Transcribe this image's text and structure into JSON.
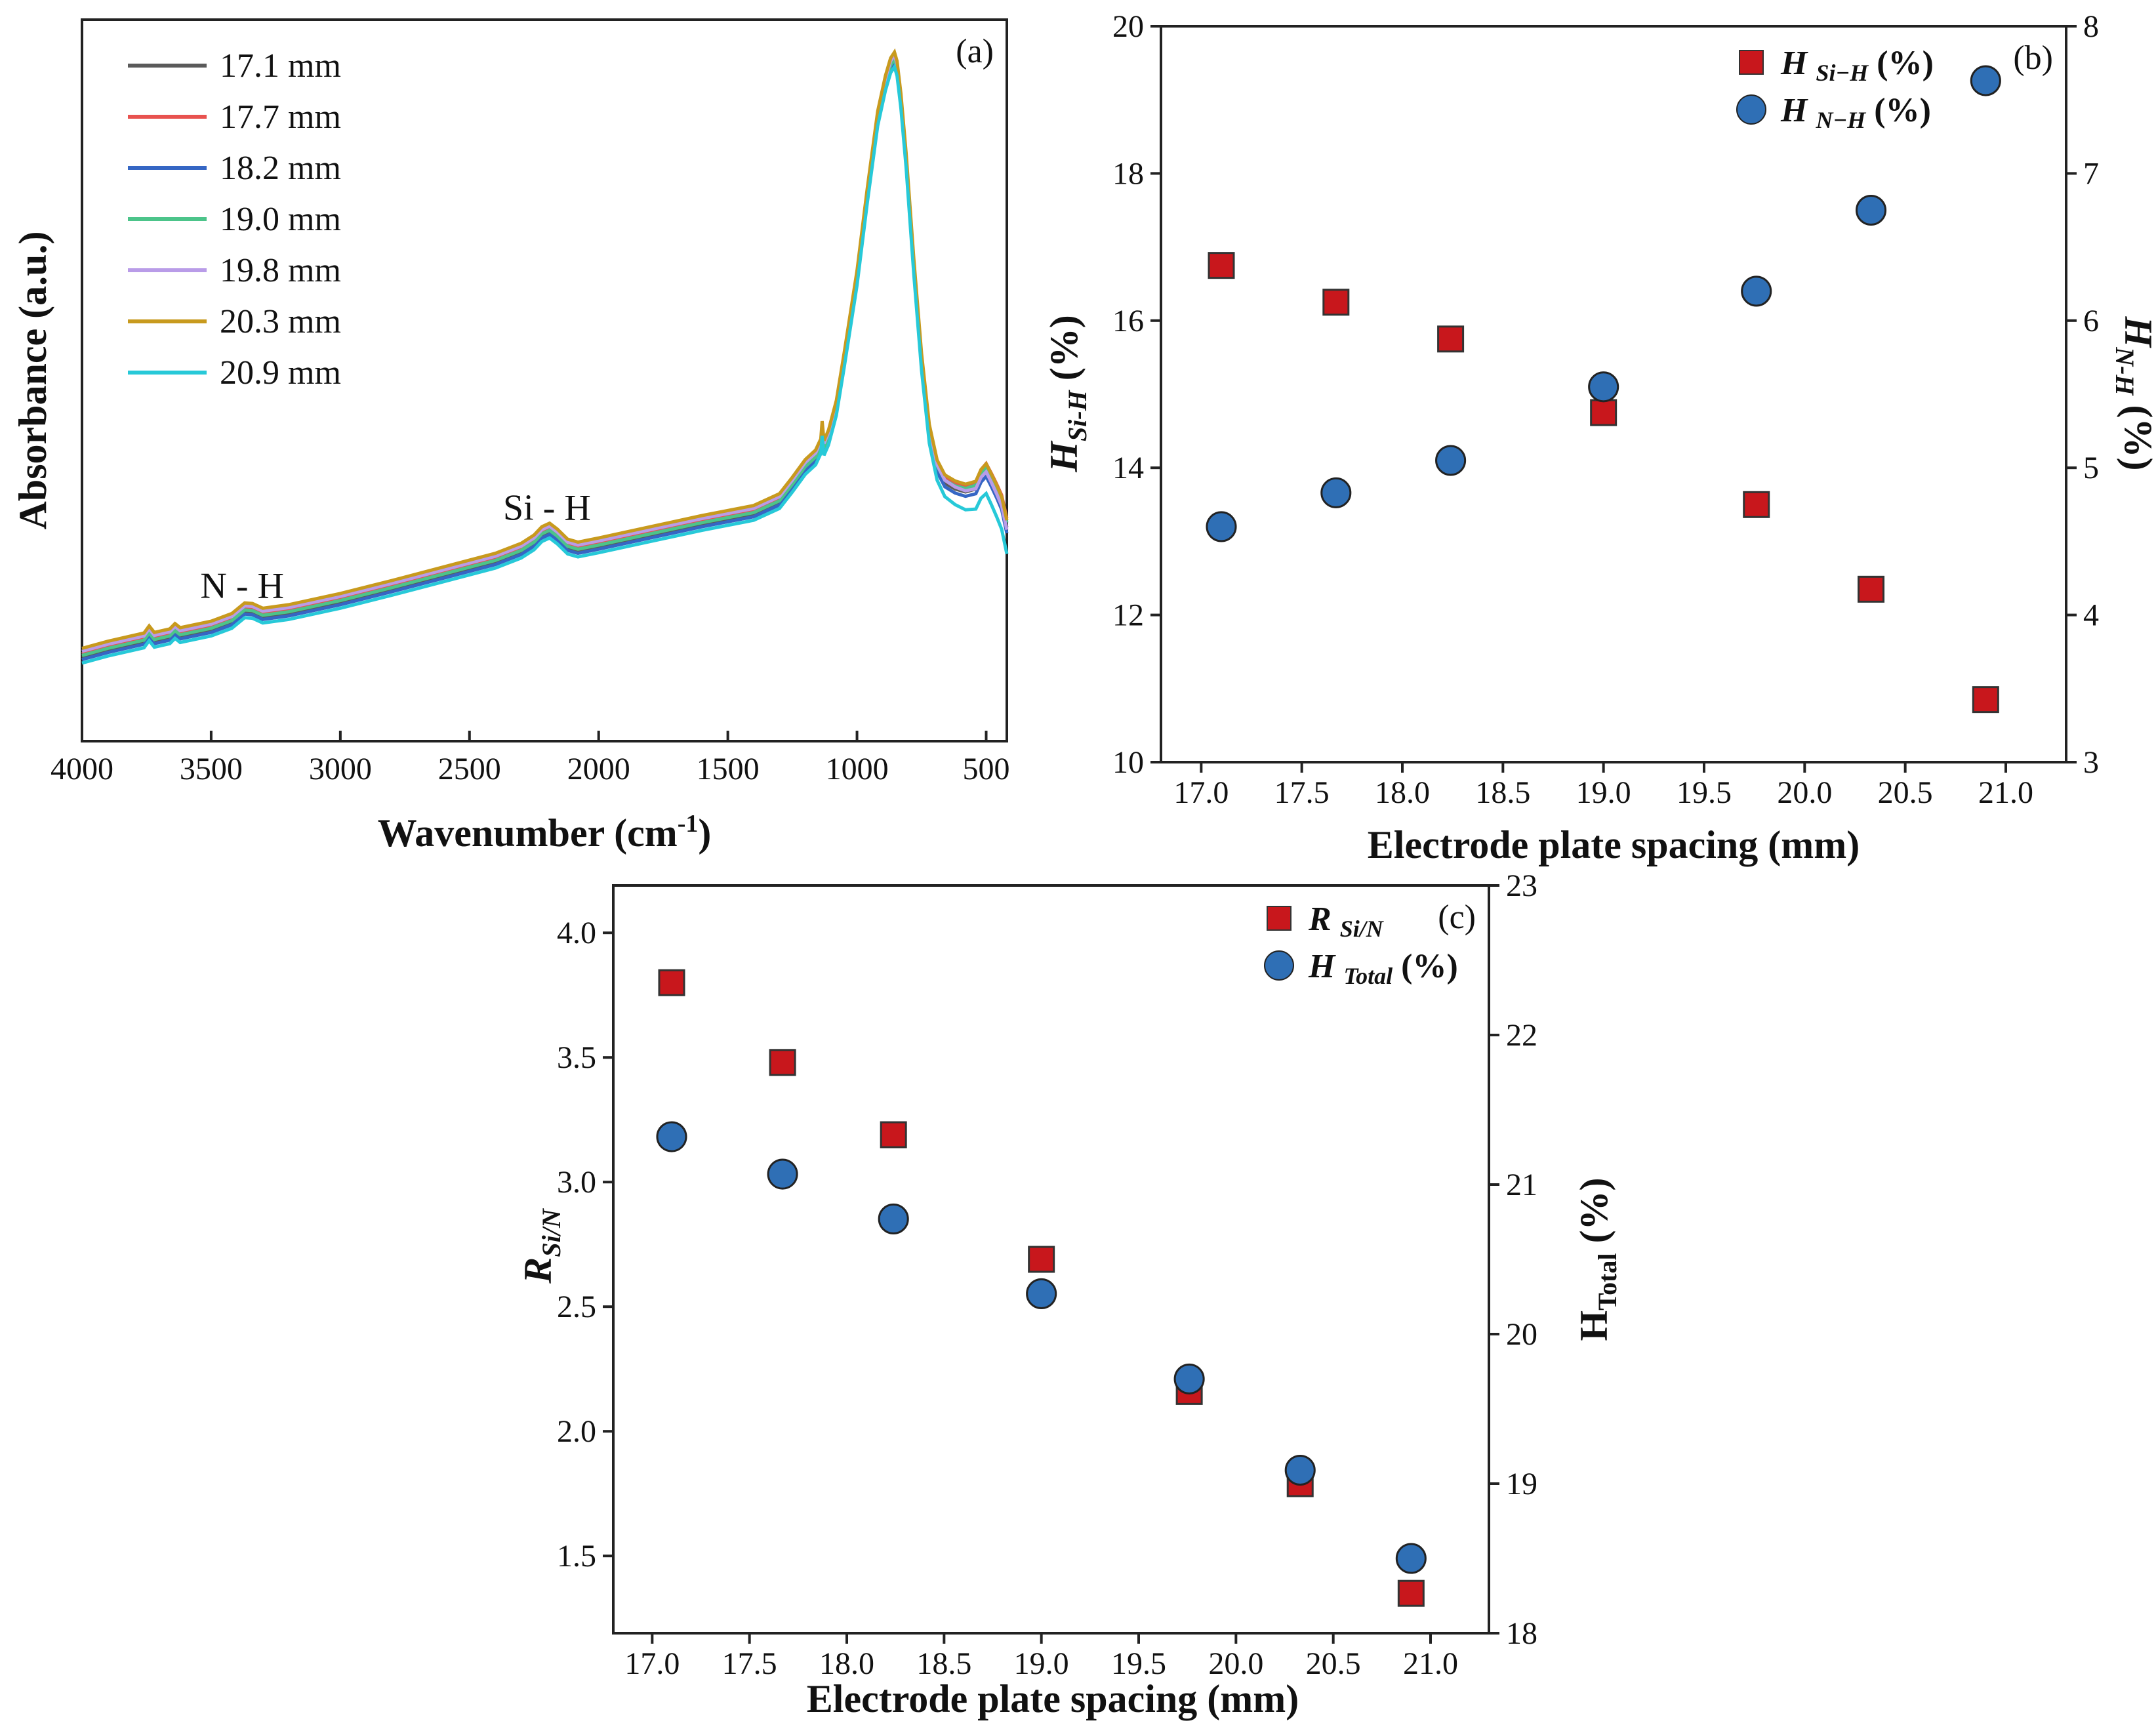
{
  "chart_data": [
    {
      "panel": "(a)",
      "type": "line",
      "xlabel": "Wavenumber (cm-1)",
      "xlabel_main": "Wavenumber (cm",
      "xlabel_sup": "-1",
      "xlabel_tail": ")",
      "ylabel": "Absorbance (a.u.)",
      "xlim": [
        4000,
        420
      ],
      "x_reversed": true,
      "xticks": [
        4000,
        3500,
        3000,
        2500,
        2000,
        1500,
        1000,
        500
      ],
      "xtick_labels": [
        "4000",
        "3500",
        "3000",
        "2500",
        "2000",
        "1500",
        "1000",
        "500"
      ],
      "ylim": [
        0,
        1
      ],
      "y_ticks_shown": false,
      "legend_position": "top-left",
      "annotations": [
        {
          "text": "N - H",
          "x": 3380,
          "y": 0.093
        },
        {
          "text": "Si - H",
          "x": 2200,
          "y": 0.225
        }
      ],
      "base_curve": {
        "x": [
          4000,
          3900,
          3760,
          3740,
          3720,
          3660,
          3640,
          3620,
          3500,
          3420,
          3370,
          3340,
          3300,
          3200,
          3000,
          2800,
          2600,
          2400,
          2300,
          2250,
          2220,
          2190,
          2160,
          2120,
          2080,
          2000,
          1800,
          1600,
          1400,
          1300,
          1250,
          1200,
          1160,
          1140,
          1135,
          1128,
          1110,
          1080,
          1050,
          1000,
          960,
          920,
          890,
          870,
          855,
          845,
          830,
          810,
          780,
          750,
          720,
          690,
          660,
          620,
          580,
          540,
          520,
          500,
          480,
          460,
          440,
          420
        ],
        "y": [
          0.02,
          0.032,
          0.046,
          0.058,
          0.047,
          0.053,
          0.062,
          0.055,
          0.066,
          0.079,
          0.097,
          0.096,
          0.088,
          0.094,
          0.113,
          0.135,
          0.158,
          0.181,
          0.198,
          0.212,
          0.226,
          0.232,
          0.222,
          0.205,
          0.2,
          0.207,
          0.226,
          0.245,
          0.262,
          0.282,
          0.31,
          0.34,
          0.356,
          0.375,
          0.405,
          0.372,
          0.39,
          0.44,
          0.52,
          0.66,
          0.8,
          0.93,
          0.99,
          1.02,
          1.03,
          1.015,
          0.96,
          0.86,
          0.68,
          0.52,
          0.4,
          0.34,
          0.315,
          0.305,
          0.3,
          0.305,
          0.325,
          0.335,
          0.318,
          0.3,
          0.28,
          0.24
        ]
      },
      "series": [
        {
          "name": "17.1 mm",
          "color": "#5a5a5a",
          "offset": 0.0,
          "low_end_offset": 0.0
        },
        {
          "name": "17.7 mm",
          "color": "#e8524f",
          "offset": 0.006,
          "low_end_offset": 0.015
        },
        {
          "name": "18.2 mm",
          "color": "#3566c4",
          "offset": -0.004,
          "low_end_offset": -0.01
        },
        {
          "name": "19.0 mm",
          "color": "#4cc48a",
          "offset": 0.003,
          "low_end_offset": 0.008
        },
        {
          "name": "19.8 mm",
          "color": "#b99ce8",
          "offset": 0.01,
          "low_end_offset": -0.004
        },
        {
          "name": "20.3 mm",
          "color": "#c89a1e",
          "offset": 0.015,
          "low_end_offset": 0.012
        },
        {
          "name": "20.9 mm",
          "color": "#27c9d8",
          "offset": -0.01,
          "low_end_offset": -0.045
        }
      ]
    },
    {
      "panel": "(b)",
      "type": "scatter",
      "xlabel": "Electrode plate spacing (mm)",
      "ylabel_left": {
        "main": "H",
        "sub": "Si-H",
        "tail": " (%)"
      },
      "ylabel_right": {
        "main": "H",
        "sub": "N-H",
        "tail": " (%)"
      },
      "xlim": [
        16.8,
        21.3
      ],
      "xticks": [
        17.0,
        17.5,
        18.0,
        18.5,
        19.0,
        19.5,
        20.0,
        20.5,
        21.0
      ],
      "xtick_labels": [
        "17.0",
        "17.5",
        "18.0",
        "18.5",
        "19.0",
        "19.5",
        "20.0",
        "20.5",
        "21.0"
      ],
      "ylim_left": [
        10,
        20
      ],
      "yticks_left": [
        10,
        12,
        14,
        16,
        18,
        20
      ],
      "ytick_labels_left": [
        "10",
        "12",
        "14",
        "16",
        "18",
        "20"
      ],
      "ylim_right": [
        3,
        8
      ],
      "yticks_right": [
        3,
        4,
        5,
        6,
        7,
        8
      ],
      "ytick_labels_right": [
        "3",
        "4",
        "5",
        "6",
        "7",
        "8"
      ],
      "legend_position": "top-right",
      "x": [
        17.1,
        17.67,
        18.24,
        19.0,
        19.76,
        20.33,
        20.9
      ],
      "series": [
        {
          "name": "H Si−H (%)",
          "legend": {
            "main": "H",
            "sub": "Si−H",
            "tail": " (%)"
          },
          "axis": "left",
          "marker": "square",
          "color": "#c8171c",
          "values": [
            16.75,
            16.25,
            15.75,
            14.75,
            13.5,
            12.35,
            10.85
          ]
        },
        {
          "name": "H N−H (%)",
          "legend": {
            "main": "H",
            "sub": "N−H",
            "tail": " (%)"
          },
          "axis": "right",
          "marker": "circle",
          "color": "#2f6fb5",
          "values": [
            4.6,
            4.83,
            5.05,
            5.55,
            6.2,
            6.75,
            7.63
          ]
        }
      ]
    },
    {
      "panel": "(c)",
      "type": "scatter",
      "xlabel": "Electrode plate spacing (mm)",
      "ylabel_left": {
        "main": "R",
        "sub": "Si/N",
        "tail": ""
      },
      "ylabel_right": {
        "main": "H",
        "sub": "Total",
        "tail": " (%)"
      },
      "xlim": [
        16.8,
        21.3
      ],
      "xticks": [
        17.0,
        17.5,
        18.0,
        18.5,
        19.0,
        19.5,
        20.0,
        20.5,
        21.0
      ],
      "xtick_labels": [
        "17.0",
        "17.5",
        "18.0",
        "18.5",
        "19.0",
        "19.5",
        "20.0",
        "20.5",
        "21.0"
      ],
      "ylim_left": [
        1.19,
        4.19
      ],
      "yticks_left": [
        1.5,
        2.0,
        2.5,
        3.0,
        3.5,
        4.0
      ],
      "ytick_labels_left": [
        "1.5",
        "2.0",
        "2.5",
        "3.0",
        "3.5",
        "4.0"
      ],
      "ylim_right": [
        18,
        23
      ],
      "yticks_right": [
        18,
        19,
        20,
        21,
        22,
        23
      ],
      "ytick_labels_right": [
        "18",
        "19",
        "20",
        "21",
        "22",
        "23"
      ],
      "legend_position": "top-right",
      "x": [
        17.1,
        17.67,
        18.24,
        19.0,
        19.76,
        20.33,
        20.9
      ],
      "series": [
        {
          "name": "R Si/N",
          "legend": {
            "main": "R",
            "sub": "Si/N",
            "tail": ""
          },
          "axis": "left",
          "marker": "square",
          "color": "#c8171c",
          "values": [
            3.8,
            3.48,
            3.19,
            2.69,
            2.16,
            1.79,
            1.35
          ]
        },
        {
          "name": "H Total (%)",
          "legend": {
            "main": "H",
            "sub": "Total",
            "tail": " (%)"
          },
          "axis": "right",
          "marker": "circle",
          "color": "#2f6fb5",
          "values": [
            21.32,
            21.07,
            20.77,
            20.27,
            19.7,
            19.09,
            18.5
          ]
        }
      ]
    }
  ]
}
